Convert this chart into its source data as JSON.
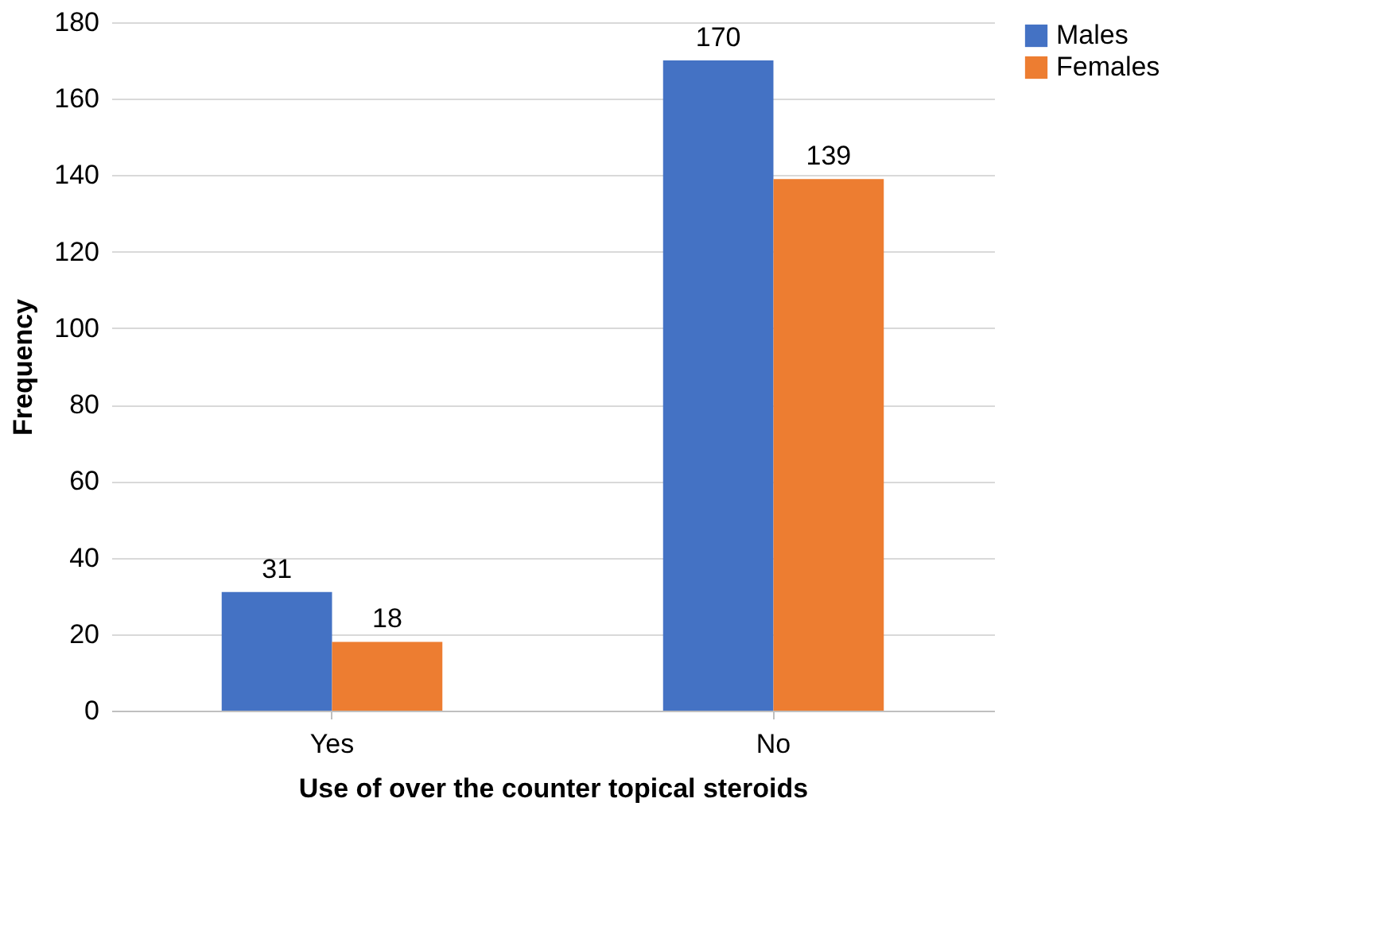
{
  "chart_data": {
    "type": "bar",
    "xlabel": "Use of over the counter topical steroids",
    "ylabel": "Frequency",
    "categories": [
      "Yes",
      "No"
    ],
    "series": [
      {
        "name": "Males",
        "color": "#4472c4",
        "values": [
          31,
          170
        ]
      },
      {
        "name": "Females",
        "color": "#ed7d31",
        "values": [
          18,
          139
        ]
      }
    ],
    "ylim": [
      0,
      180
    ],
    "yticks": [
      0,
      20,
      40,
      60,
      80,
      100,
      120,
      140,
      160,
      180
    ],
    "grid": "y",
    "legend": "right",
    "data_labels": true
  }
}
